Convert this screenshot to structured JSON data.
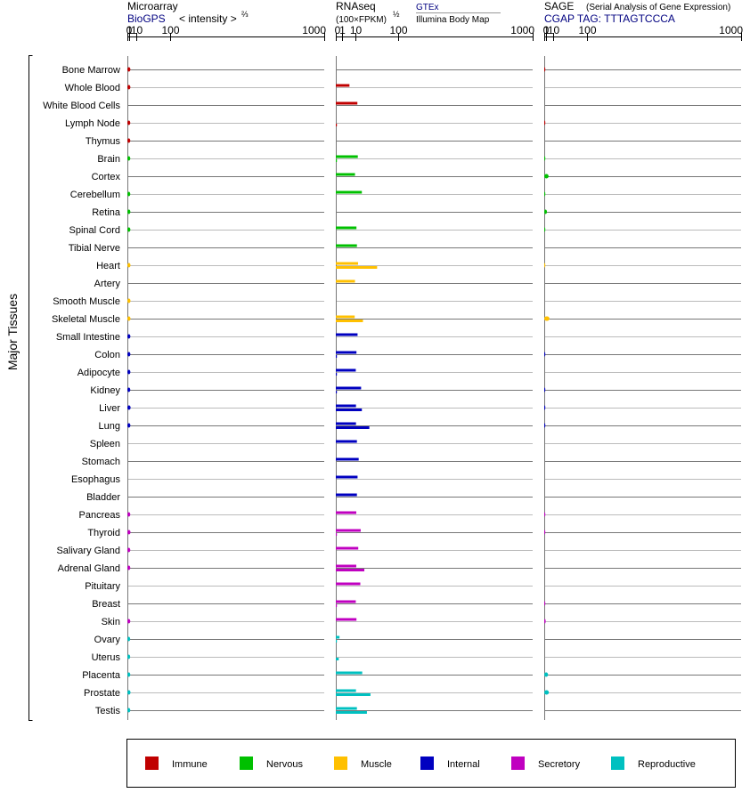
{
  "y_axis_title": "Major Tissues",
  "chart_data": {
    "type": "bar",
    "tissues": [
      "Bone Marrow",
      "Whole Blood",
      "White Blood Cells",
      "Lymph Node",
      "Thymus",
      "Brain",
      "Cortex",
      "Cerebellum",
      "Retina",
      "Spinal Cord",
      "Tibial Nerve",
      "Heart",
      "Artery",
      "Smooth Muscle",
      "Skeletal Muscle",
      "Small Intestine",
      "Colon",
      "Adipocyte",
      "Kidney",
      "Liver",
      "Lung",
      "Spleen",
      "Stomach",
      "Esophagus",
      "Bladder",
      "Pancreas",
      "Thyroid",
      "Salivary Gland",
      "Adrenal Gland",
      "Pituitary",
      "Breast",
      "Skin",
      "Ovary",
      "Uterus",
      "Placenta",
      "Prostate",
      "Testis"
    ],
    "groups": [
      "Immune",
      "Immune",
      "Immune",
      "Immune",
      "Immune",
      "Nervous",
      "Nervous",
      "Nervous",
      "Nervous",
      "Nervous",
      "Nervous",
      "Muscle",
      "Muscle",
      "Muscle",
      "Muscle",
      "Internal",
      "Internal",
      "Internal",
      "Internal",
      "Internal",
      "Internal",
      "Internal",
      "Internal",
      "Internal",
      "Internal",
      "Secretory",
      "Secretory",
      "Secretory",
      "Secretory",
      "Secretory",
      "Secretory",
      "Secretory",
      "Reproductive",
      "Reproductive",
      "Reproductive",
      "Reproductive",
      "Reproductive"
    ],
    "panels": [
      {
        "id": "microarray",
        "title": "Microarray",
        "subtitle": "BioGPS",
        "scale_label": "< intensity >",
        "scale_exponent": "⅔",
        "scale_power": 0.6667,
        "ticks": [
          "0",
          "1",
          "10",
          "100",
          "1000"
        ],
        "xlim": [
          0,
          1000
        ],
        "values": [
          1.9,
          1.9,
          null,
          1.8,
          1.8,
          1.8,
          null,
          1.8,
          1.9,
          1.9,
          null,
          2.0,
          null,
          2.0,
          2.0,
          1.9,
          1.9,
          1.9,
          1.8,
          2.1,
          1.9,
          null,
          null,
          null,
          null,
          1.8,
          2.0,
          1.8,
          1.8,
          null,
          null,
          1.8,
          1.7,
          1.7,
          1.8,
          2.0,
          1.8
        ]
      },
      {
        "id": "rnaseq",
        "title": "RNAseq",
        "scale_label": "(100×FPKM)",
        "scale_exponent": "½",
        "scale_power": 0.5,
        "ticks": [
          "0",
          "1",
          "10",
          "100",
          "1000"
        ],
        "xlim": [
          0,
          1000
        ],
        "sources": [
          {
            "label": "GTEx",
            "color": "#000080"
          },
          {
            "label": "Illumina Body Map",
            "color": "#000000"
          }
        ],
        "gtex": [
          null,
          4.8,
          12.0,
          null,
          null,
          12.5,
          9.5,
          17.5,
          null,
          11.0,
          11.5,
          12.8,
          9.5,
          null,
          9.2,
          12.2,
          11.0,
          10.3,
          16.5,
          10.5,
          10.5,
          11.5,
          13.5,
          12.2,
          11.5,
          10.8,
          16.0,
          13.0,
          10.8,
          15.5,
          10.3,
          11.0,
          0.35,
          null,
          18.0,
          10.5,
          11.5
        ],
        "bodymap": [
          null,
          null,
          null,
          0.008,
          null,
          0.006,
          null,
          null,
          null,
          null,
          null,
          44.0,
          null,
          null,
          19.0,
          null,
          0.008,
          0.01,
          0.01,
          17.5,
          29.0,
          null,
          null,
          null,
          null,
          null,
          0.006,
          null,
          21.0,
          null,
          0.005,
          null,
          0.01,
          0.22,
          null,
          31.0,
          25.0
        ]
      },
      {
        "id": "sage",
        "title": "SAGE",
        "subtitle_note": "(Serial Analysis of Gene Expression)",
        "subtitle": "CGAP TAG: TTTAGTCCCA",
        "ticks": [
          "0",
          "1",
          "10",
          "100",
          "1000"
        ],
        "xlim": [
          0,
          1000
        ],
        "scale_power": 0.6667,
        "values": [
          0.02,
          null,
          null,
          0.02,
          null,
          0.02,
          3.3,
          0.01,
          1.6,
          0.01,
          null,
          0.005,
          null,
          null,
          4.3,
          null,
          0.03,
          null,
          0.03,
          0.03,
          0.03,
          null,
          null,
          null,
          null,
          0.03,
          0.01,
          null,
          null,
          null,
          0.01,
          0.6,
          null,
          null,
          2.7,
          3.6,
          null
        ]
      }
    ],
    "legend": [
      {
        "label": "Immune",
        "color": "#c00000"
      },
      {
        "label": "Nervous",
        "color": "#00c000"
      },
      {
        "label": "Muscle",
        "color": "#ffc000"
      },
      {
        "label": "Internal",
        "color": "#0000c0"
      },
      {
        "label": "Secretory",
        "color": "#c000c0"
      },
      {
        "label": "Reproductive",
        "color": "#00c0c0"
      }
    ]
  }
}
